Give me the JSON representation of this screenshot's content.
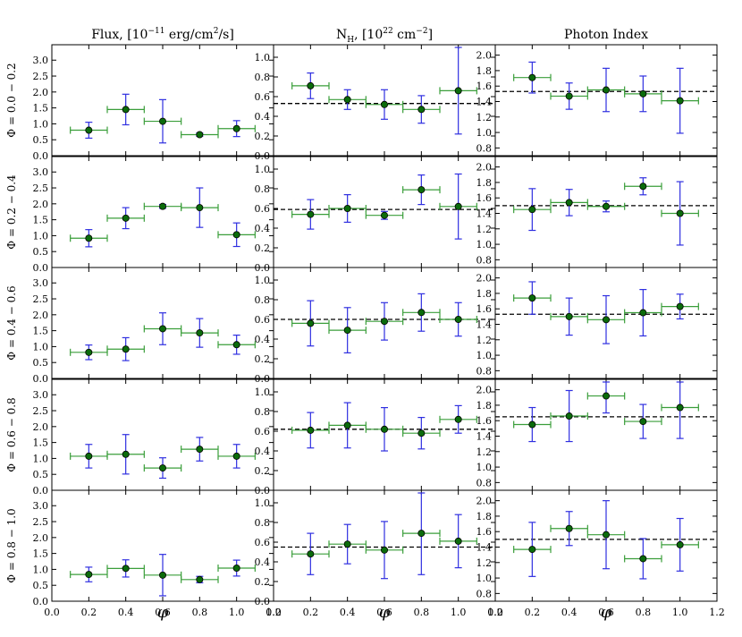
{
  "chart_data": {
    "type": "scatter",
    "x_label": "φ",
    "x_ticks": [
      "0.0",
      "0.2",
      "0.4",
      "0.6",
      "0.8",
      "1.0",
      "1.2"
    ],
    "xlim": [
      0,
      1.2
    ],
    "x": [
      0.2,
      0.4,
      0.6,
      0.8,
      1.0
    ],
    "x_err": 0.1,
    "colors": {
      "point": "#0b6b0b",
      "x_error": "#3a9e3a",
      "y_error": "#2f2fe0",
      "reference": "#000000"
    },
    "rows": [
      "Φ = 0.0 − 0.2",
      "Φ = 0.2 − 0.4",
      "Φ = 0.4 − 0.6",
      "Φ = 0.6 − 0.8",
      "Φ = 0.8 − 1.0"
    ],
    "columns": [
      {
        "title": "Flux,  [10",
        "title_sup": "−11",
        "title_mid": " erg/cm",
        "title_sup2": "2",
        "title_end": "/s]",
        "ylim": [
          0,
          3.4
        ],
        "y_ticks": [
          "0.0",
          "0.5",
          "1.0",
          "1.5",
          "2.0",
          "2.5",
          "3.0"
        ],
        "panels": [
          {
            "y": [
              0.8,
              1.45,
              1.08,
              0.66,
              0.85
            ],
            "yerr": [
              0.25,
              0.48,
              0.68,
              0.05,
              0.25
            ],
            "ref": null
          },
          {
            "y": [
              0.92,
              1.55,
              1.92,
              1.88,
              1.03
            ],
            "yerr": [
              0.27,
              0.33,
              0.06,
              0.62,
              0.37
            ],
            "ref": null
          },
          {
            "y": [
              0.82,
              0.92,
              1.56,
              1.43,
              1.06
            ],
            "yerr": [
              0.23,
              0.36,
              0.5,
              0.45,
              0.3
            ],
            "ref": null
          },
          {
            "y": [
              1.07,
              1.13,
              0.7,
              1.29,
              1.07
            ],
            "yerr": [
              0.37,
              0.62,
              0.32,
              0.37,
              0.37
            ],
            "ref": null
          },
          {
            "y": [
              0.84,
              1.03,
              0.82,
              0.68,
              1.04
            ],
            "yerr": [
              0.23,
              0.27,
              0.65,
              0.1,
              0.25
            ],
            "ref": null
          }
        ]
      },
      {
        "title": "N",
        "title_sub": "H",
        "title_mid": ",  [10",
        "title_sup": "22",
        "title_end": " cm",
        "title_sup2": "−2",
        "title_close": "]",
        "ylim": [
          0,
          1.1
        ],
        "y_ticks": [
          "0.0",
          "0.2",
          "0.4",
          "0.6",
          "0.8",
          "1.0"
        ],
        "panels": [
          {
            "y": [
              0.71,
              0.57,
              0.52,
              0.47,
              0.66
            ],
            "yerr": [
              0.13,
              0.1,
              0.15,
              0.14,
              0.44
            ],
            "ref": 0.53
          },
          {
            "y": [
              0.54,
              0.6,
              0.53,
              0.79,
              0.62
            ],
            "yerr": [
              0.15,
              0.14,
              0.04,
              0.15,
              0.33
            ],
            "ref": 0.59
          },
          {
            "y": [
              0.56,
              0.49,
              0.58,
              0.67,
              0.6
            ],
            "yerr": [
              0.23,
              0.23,
              0.19,
              0.19,
              0.17
            ],
            "ref": 0.6
          },
          {
            "y": [
              0.61,
              0.66,
              0.62,
              0.58,
              0.72
            ],
            "yerr": [
              0.18,
              0.23,
              0.22,
              0.16,
              0.14
            ],
            "ref": 0.62
          },
          {
            "y": [
              0.48,
              0.58,
              0.52,
              0.69,
              0.61
            ],
            "yerr": [
              0.21,
              0.2,
              0.29,
              0.42,
              0.27
            ],
            "ref": 0.55
          }
        ]
      },
      {
        "title": "Photon Index",
        "ylim": [
          0.7,
          2.1
        ],
        "y_ticks": [
          "0.8",
          "1.0",
          "1.2",
          "1.4",
          "1.6",
          "1.8",
          "2.0"
        ],
        "panels": [
          {
            "y": [
              1.71,
              1.47,
              1.55,
              1.5,
              1.41
            ],
            "yerr": [
              0.2,
              0.17,
              0.28,
              0.23,
              0.42
            ],
            "ref": 1.53
          },
          {
            "y": [
              1.45,
              1.54,
              1.49,
              1.75,
              1.4
            ],
            "yerr": [
              0.27,
              0.17,
              0.07,
              0.11,
              0.41
            ],
            "ref": 1.5
          },
          {
            "y": [
              1.74,
              1.5,
              1.46,
              1.55,
              1.63
            ],
            "yerr": [
              0.21,
              0.24,
              0.31,
              0.3,
              0.16
            ],
            "ref": 1.53
          },
          {
            "y": [
              1.55,
              1.66,
              1.92,
              1.59,
              1.77
            ],
            "yerr": [
              0.22,
              0.33,
              0.22,
              0.22,
              0.4
            ],
            "ref": 1.65
          },
          {
            "y": [
              1.37,
              1.64,
              1.56,
              1.25,
              1.43
            ],
            "yerr": [
              0.35,
              0.22,
              0.44,
              0.26,
              0.34
            ],
            "ref": 1.5
          }
        ]
      }
    ]
  }
}
